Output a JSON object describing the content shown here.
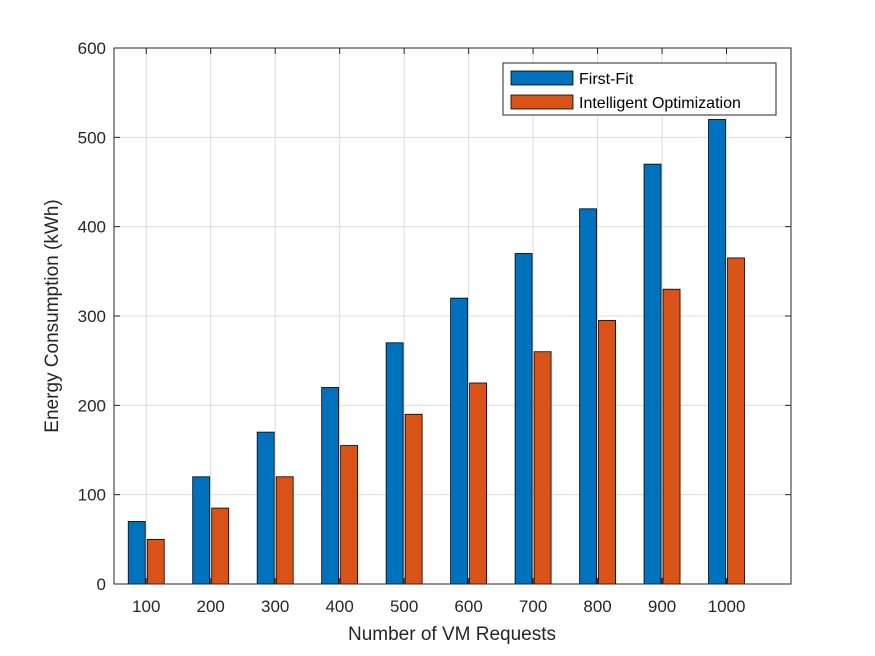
{
  "chart_data": {
    "type": "bar",
    "title": "",
    "xlabel": "Number of VM Requests",
    "ylabel": "Energy Consumption (kWh)",
    "categories": [
      "100",
      "200",
      "300",
      "400",
      "500",
      "600",
      "700",
      "800",
      "900",
      "1000"
    ],
    "series": [
      {
        "name": "First-Fit",
        "color": "#0072BD",
        "values": [
          70,
          120,
          170,
          220,
          270,
          320,
          370,
          420,
          470,
          520
        ]
      },
      {
        "name": "Intelligent Optimization",
        "color": "#D95319",
        "values": [
          50,
          85,
          120,
          155,
          190,
          225,
          260,
          295,
          330,
          365
        ]
      }
    ],
    "ylim": [
      0,
      600
    ],
    "yticks": [
      "0",
      "100",
      "200",
      "300",
      "400",
      "500",
      "600"
    ],
    "grid": true,
    "legend_position": "top-right"
  }
}
